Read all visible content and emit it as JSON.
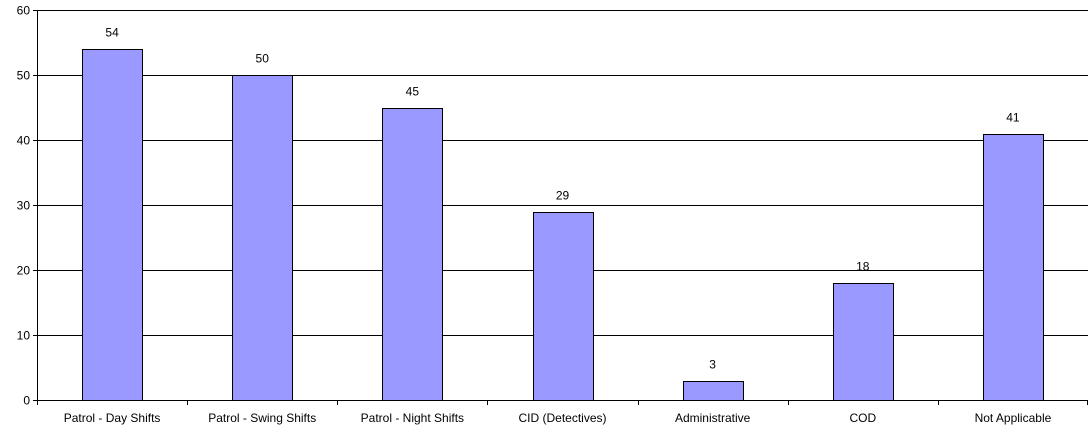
{
  "chart_data": {
    "type": "bar",
    "categories": [
      "Patrol - Day Shifts",
      "Patrol - Swing Shifts",
      "Patrol - Night Shifts",
      "CID (Detectives)",
      "Administrative",
      "COD",
      "Not Applicable"
    ],
    "values": [
      54,
      50,
      45,
      29,
      3,
      18,
      41
    ],
    "ylim": [
      0,
      60
    ],
    "yticks": [
      0,
      10,
      20,
      30,
      40,
      50,
      60
    ],
    "grid": true,
    "legend": "none",
    "colors": {
      "bar_fill": "#9999ff",
      "bar_stroke": "#000000",
      "grid": "#000000",
      "axis": "#000000"
    }
  }
}
